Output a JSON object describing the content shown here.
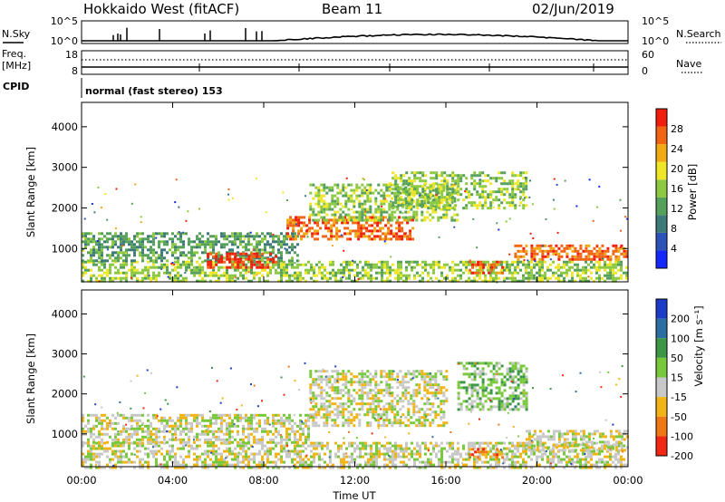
{
  "header": {
    "station": "Hokkaido West (fitACF)",
    "beam": "Beam 11",
    "date": "02/Jun/2019"
  },
  "summary_panel": {
    "nsky_label": "N.Sky",
    "nsearch_label": "N.Search",
    "nsky_ticks": [
      "10^5",
      "10^0"
    ],
    "nsky_right_ticks": [
      "10^5",
      "10^0"
    ],
    "freq_label_1": "Freq.",
    "freq_label_2": "[MHz]",
    "freq_ticks": [
      "18",
      "8"
    ],
    "nave_label": "Nave",
    "nave_ticks": [
      "60",
      "0"
    ],
    "cpid_label": "CPID",
    "cpid_text": "normal (fast stereo) 153"
  },
  "chart_data": [
    {
      "type": "heatmap",
      "panel": "power",
      "ylabel": "Slant Range [km]",
      "ylim": [
        180,
        4600
      ],
      "yticks": [
        "4000",
        "3000",
        "2000",
        "1000"
      ],
      "xlim": [
        0,
        24
      ],
      "colorbar_label": "Power [dB]",
      "colorbar_ticks": [
        "28",
        "24",
        "20",
        "16",
        "12",
        "8",
        "4"
      ],
      "colorscale": [
        "#1428ff",
        "#2c53b8",
        "#3e7a7a",
        "#55a05a",
        "#8cc840",
        "#f0e628",
        "#f0aa14",
        "#f06414",
        "#f01e0a"
      ],
      "echo_bands": [
        {
          "t0": 0.0,
          "t1": 24.0,
          "r0": 180,
          "r1": 700,
          "level": 4
        },
        {
          "t0": 0.0,
          "t1": 9.5,
          "r0": 700,
          "r1": 1400,
          "level": 3
        },
        {
          "t0": 5.5,
          "t1": 8.5,
          "r0": 500,
          "r1": 900,
          "level": 8
        },
        {
          "t0": 9.0,
          "t1": 14.5,
          "r0": 1200,
          "r1": 1800,
          "level": 7
        },
        {
          "t0": 10.0,
          "t1": 16.5,
          "r0": 1700,
          "r1": 2600,
          "level": 4
        },
        {
          "t0": 13.5,
          "t1": 19.5,
          "r0": 2000,
          "r1": 2900,
          "level": 4
        },
        {
          "t0": 17.0,
          "t1": 18.5,
          "r0": 400,
          "r1": 700,
          "level": 7
        },
        {
          "t0": 19.0,
          "t1": 24.0,
          "r0": 700,
          "r1": 1100,
          "level": 7
        }
      ]
    },
    {
      "type": "heatmap",
      "panel": "velocity",
      "ylabel": "Slant Range [km]",
      "ylim": [
        180,
        4600
      ],
      "yticks": [
        "4000",
        "3000",
        "2000",
        "1000"
      ],
      "xlim": [
        0,
        24
      ],
      "xticks": [
        "00:00",
        "04:00",
        "08:00",
        "12:00",
        "16:00",
        "20:00",
        "00:00"
      ],
      "xlabel": "Time UT",
      "colorbar_label": "Velocity [m s⁻¹]",
      "colorbar_ticks": [
        "200",
        "100",
        "50",
        "15",
        "-15",
        "-50",
        "-100",
        "-200"
      ],
      "colorscale": [
        "#1a3cc8",
        "#2c6ea0",
        "#3c9646",
        "#78c83c",
        "#c8c8c8",
        "#f0b414",
        "#f07814",
        "#f02814"
      ],
      "echo_bands": [
        {
          "t0": 0.0,
          "t1": 24.0,
          "r0": 180,
          "r1": 800,
          "level": 4
        },
        {
          "t0": 0.0,
          "t1": 10.0,
          "r0": 800,
          "r1": 1500,
          "level": 4
        },
        {
          "t0": 10.0,
          "t1": 16.0,
          "r0": 1200,
          "r1": 2600,
          "level": 4
        },
        {
          "t0": 16.5,
          "t1": 19.5,
          "r0": 1600,
          "r1": 2800,
          "level": 3
        },
        {
          "t0": 17.0,
          "t1": 18.5,
          "r0": 400,
          "r1": 650,
          "level": 6
        },
        {
          "t0": 19.5,
          "t1": 24.0,
          "r0": 600,
          "r1": 1100,
          "level": 4
        }
      ]
    }
  ]
}
